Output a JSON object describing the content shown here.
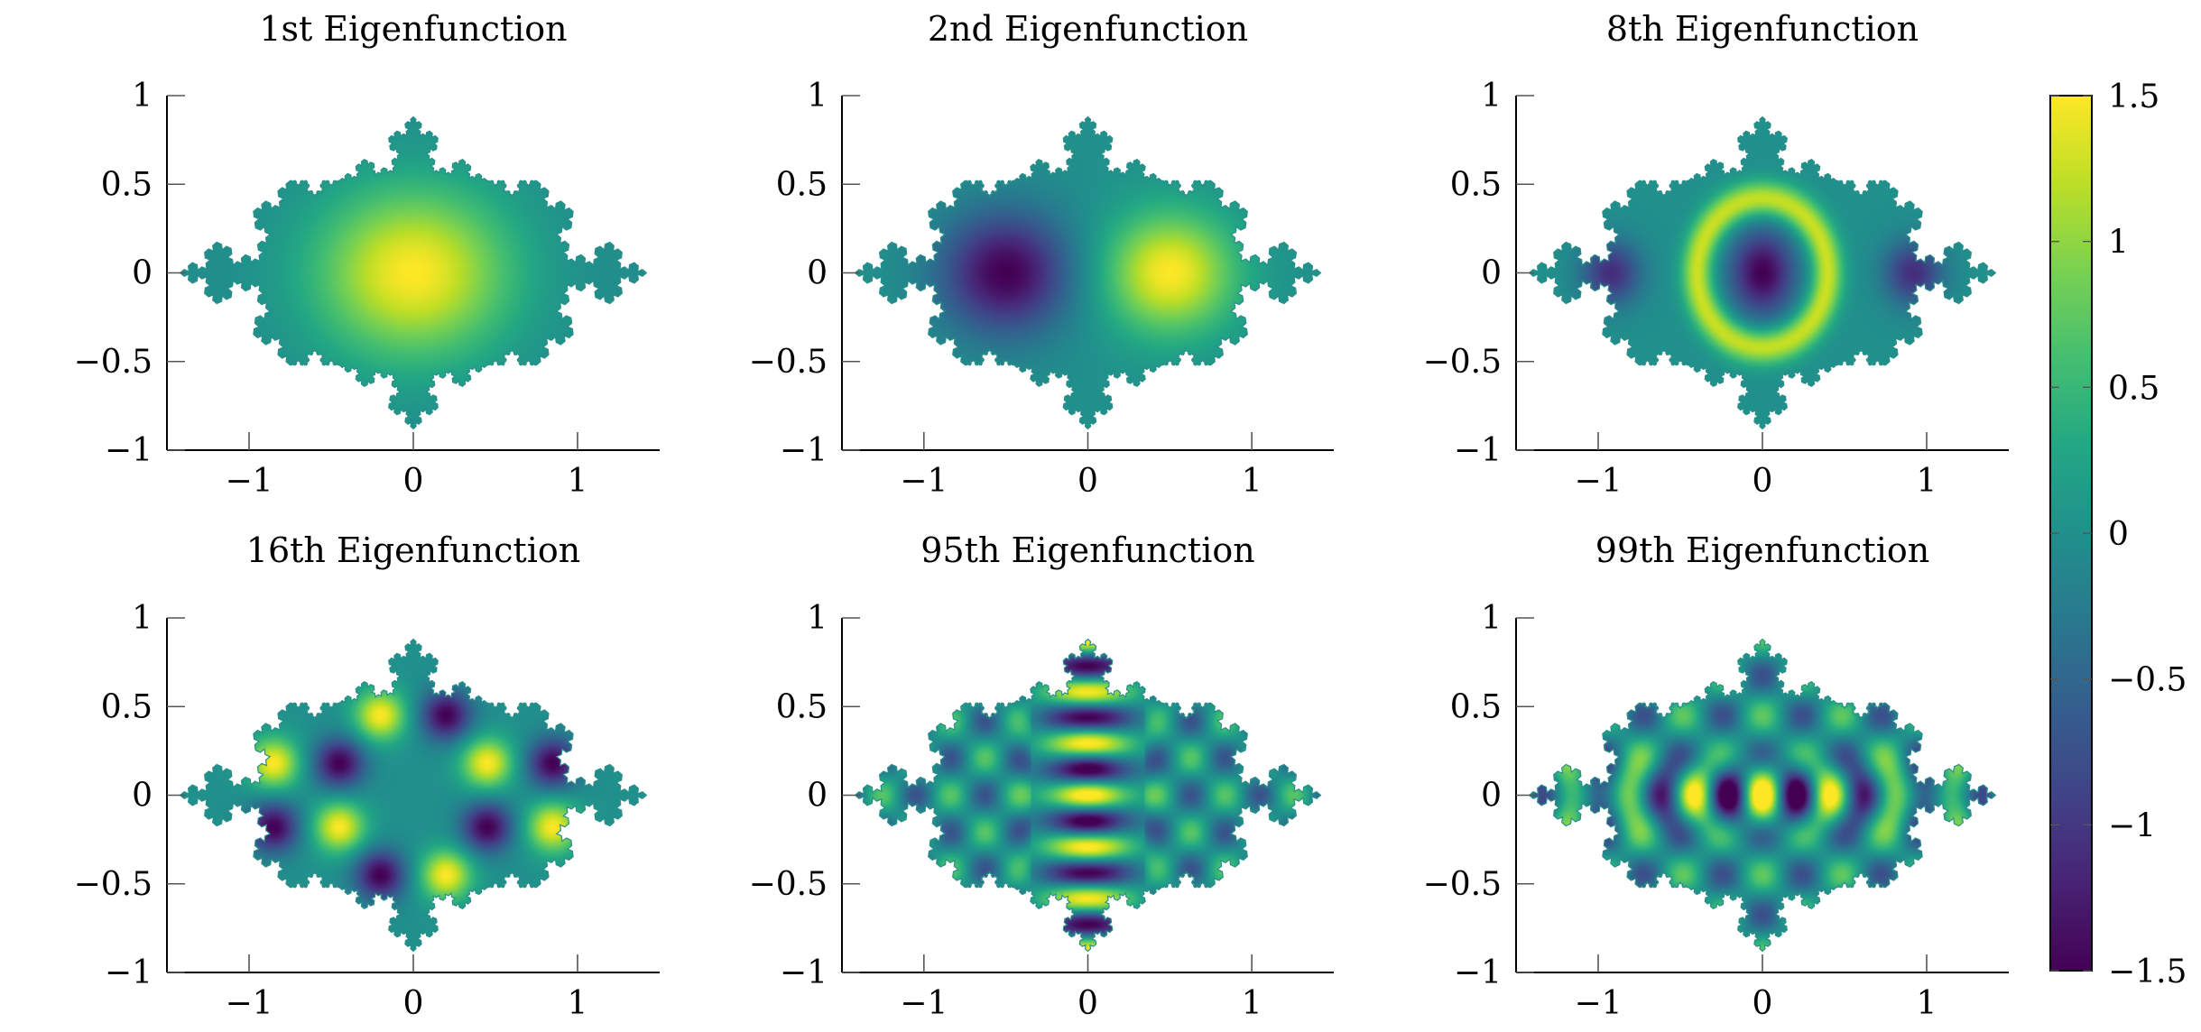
{
  "chart_data": {
    "type": "heatmap",
    "layout": "2x3 grid of panels with shared colorbar on the right",
    "domain_shape": "Koch-type fractal snowflake region (three lobes, elongated horizontally)",
    "panels": [
      {
        "title": "1st Eigenfunction",
        "xlim": [
          -1.5,
          1.5
        ],
        "ylim": [
          -1,
          1
        ],
        "x_ticks": [
          -1,
          0,
          1
        ],
        "x_tick_labels": [
          "−1",
          "0",
          "1"
        ],
        "y_ticks": [
          -1,
          -0.5,
          0,
          0.5,
          1
        ],
        "y_tick_labels": [
          "−1",
          "−0.5",
          "0",
          "0.5",
          "1"
        ],
        "pattern": "single positive peak centered at (0, 0), value ≈ 1.5"
      },
      {
        "title": "2nd Eigenfunction",
        "xlim": [
          -1.5,
          1.5
        ],
        "ylim": [
          -1,
          1
        ],
        "x_ticks": [
          -1,
          0,
          1
        ],
        "x_tick_labels": [
          "−1",
          "0",
          "1"
        ],
        "y_ticks": [
          -1,
          -0.5,
          0,
          0.5,
          1
        ],
        "y_tick_labels": [
          "−1",
          "−0.5",
          "0",
          "0.5",
          "1"
        ],
        "pattern": "antisymmetric in x: minimum ≈ −1.5 near (−0.5, 0), maximum ≈ 1.5 near (0.5, 0)"
      },
      {
        "title": "8th Eigenfunction",
        "xlim": [
          -1.5,
          1.5
        ],
        "ylim": [
          -1,
          1
        ],
        "x_ticks": [
          -1,
          0,
          1
        ],
        "x_tick_labels": [
          "−1",
          "0",
          "1"
        ],
        "y_ticks": [
          -1,
          -0.5,
          0,
          0.5,
          1
        ],
        "y_tick_labels": [
          "−1",
          "−0.5",
          "0",
          "0.5",
          "1"
        ],
        "pattern": "negative core at center, positive ring around it, negative spots near (±0.9, 0)"
      },
      {
        "title": "16th Eigenfunction",
        "xlim": [
          -1.5,
          1.5
        ],
        "ylim": [
          -1,
          1
        ],
        "x_ticks": [
          -1,
          0,
          1
        ],
        "x_tick_labels": [
          "−1",
          "0",
          "1"
        ],
        "y_ticks": [
          -1,
          -0.5,
          0,
          0.5,
          1
        ],
        "y_tick_labels": [
          "−1",
          "−0.5",
          "0",
          "0.5",
          "1"
        ],
        "pattern": "alternating positive/negative lobes arranged radially around the center"
      },
      {
        "title": "95th Eigenfunction",
        "xlim": [
          -1.5,
          1.5
        ],
        "ylim": [
          -1,
          1
        ],
        "x_ticks": [
          -1,
          0,
          1
        ],
        "x_tick_labels": [
          "−1",
          "0",
          "1"
        ],
        "y_ticks": [
          -1,
          -0.5,
          0,
          0.5,
          1
        ],
        "y_tick_labels": [
          "−1",
          "−0.5",
          "0",
          "0.5",
          "1"
        ],
        "pattern": "strong vertical stack of alternating bands in the central lobe, weaker oscillations in side lobes"
      },
      {
        "title": "99th Eigenfunction",
        "xlim": [
          -1.5,
          1.5
        ],
        "ylim": [
          -1,
          1
        ],
        "x_ticks": [
          -1,
          0,
          1
        ],
        "x_tick_labels": [
          "−1",
          "0",
          "1"
        ],
        "y_ticks": [
          -1,
          -0.5,
          0,
          0.5,
          1
        ],
        "y_tick_labels": [
          "−1",
          "−0.5",
          "0",
          "0.5",
          "1"
        ],
        "pattern": "horizontal alternating bands along y = 0 with checkerboard oscillations in the central lobe"
      }
    ],
    "colorbar": {
      "colormap": "viridis",
      "range": [
        -1.5,
        1.5
      ],
      "ticks": [
        -1.5,
        -1,
        -0.5,
        0,
        0.5,
        1,
        1.5
      ],
      "tick_labels": [
        "−1.5",
        "−1",
        "−0.5",
        "0",
        "0.5",
        "1",
        "1.5"
      ],
      "colors": {
        "low": "#440154",
        "mid": "#21918c",
        "high": "#fde725"
      }
    }
  }
}
